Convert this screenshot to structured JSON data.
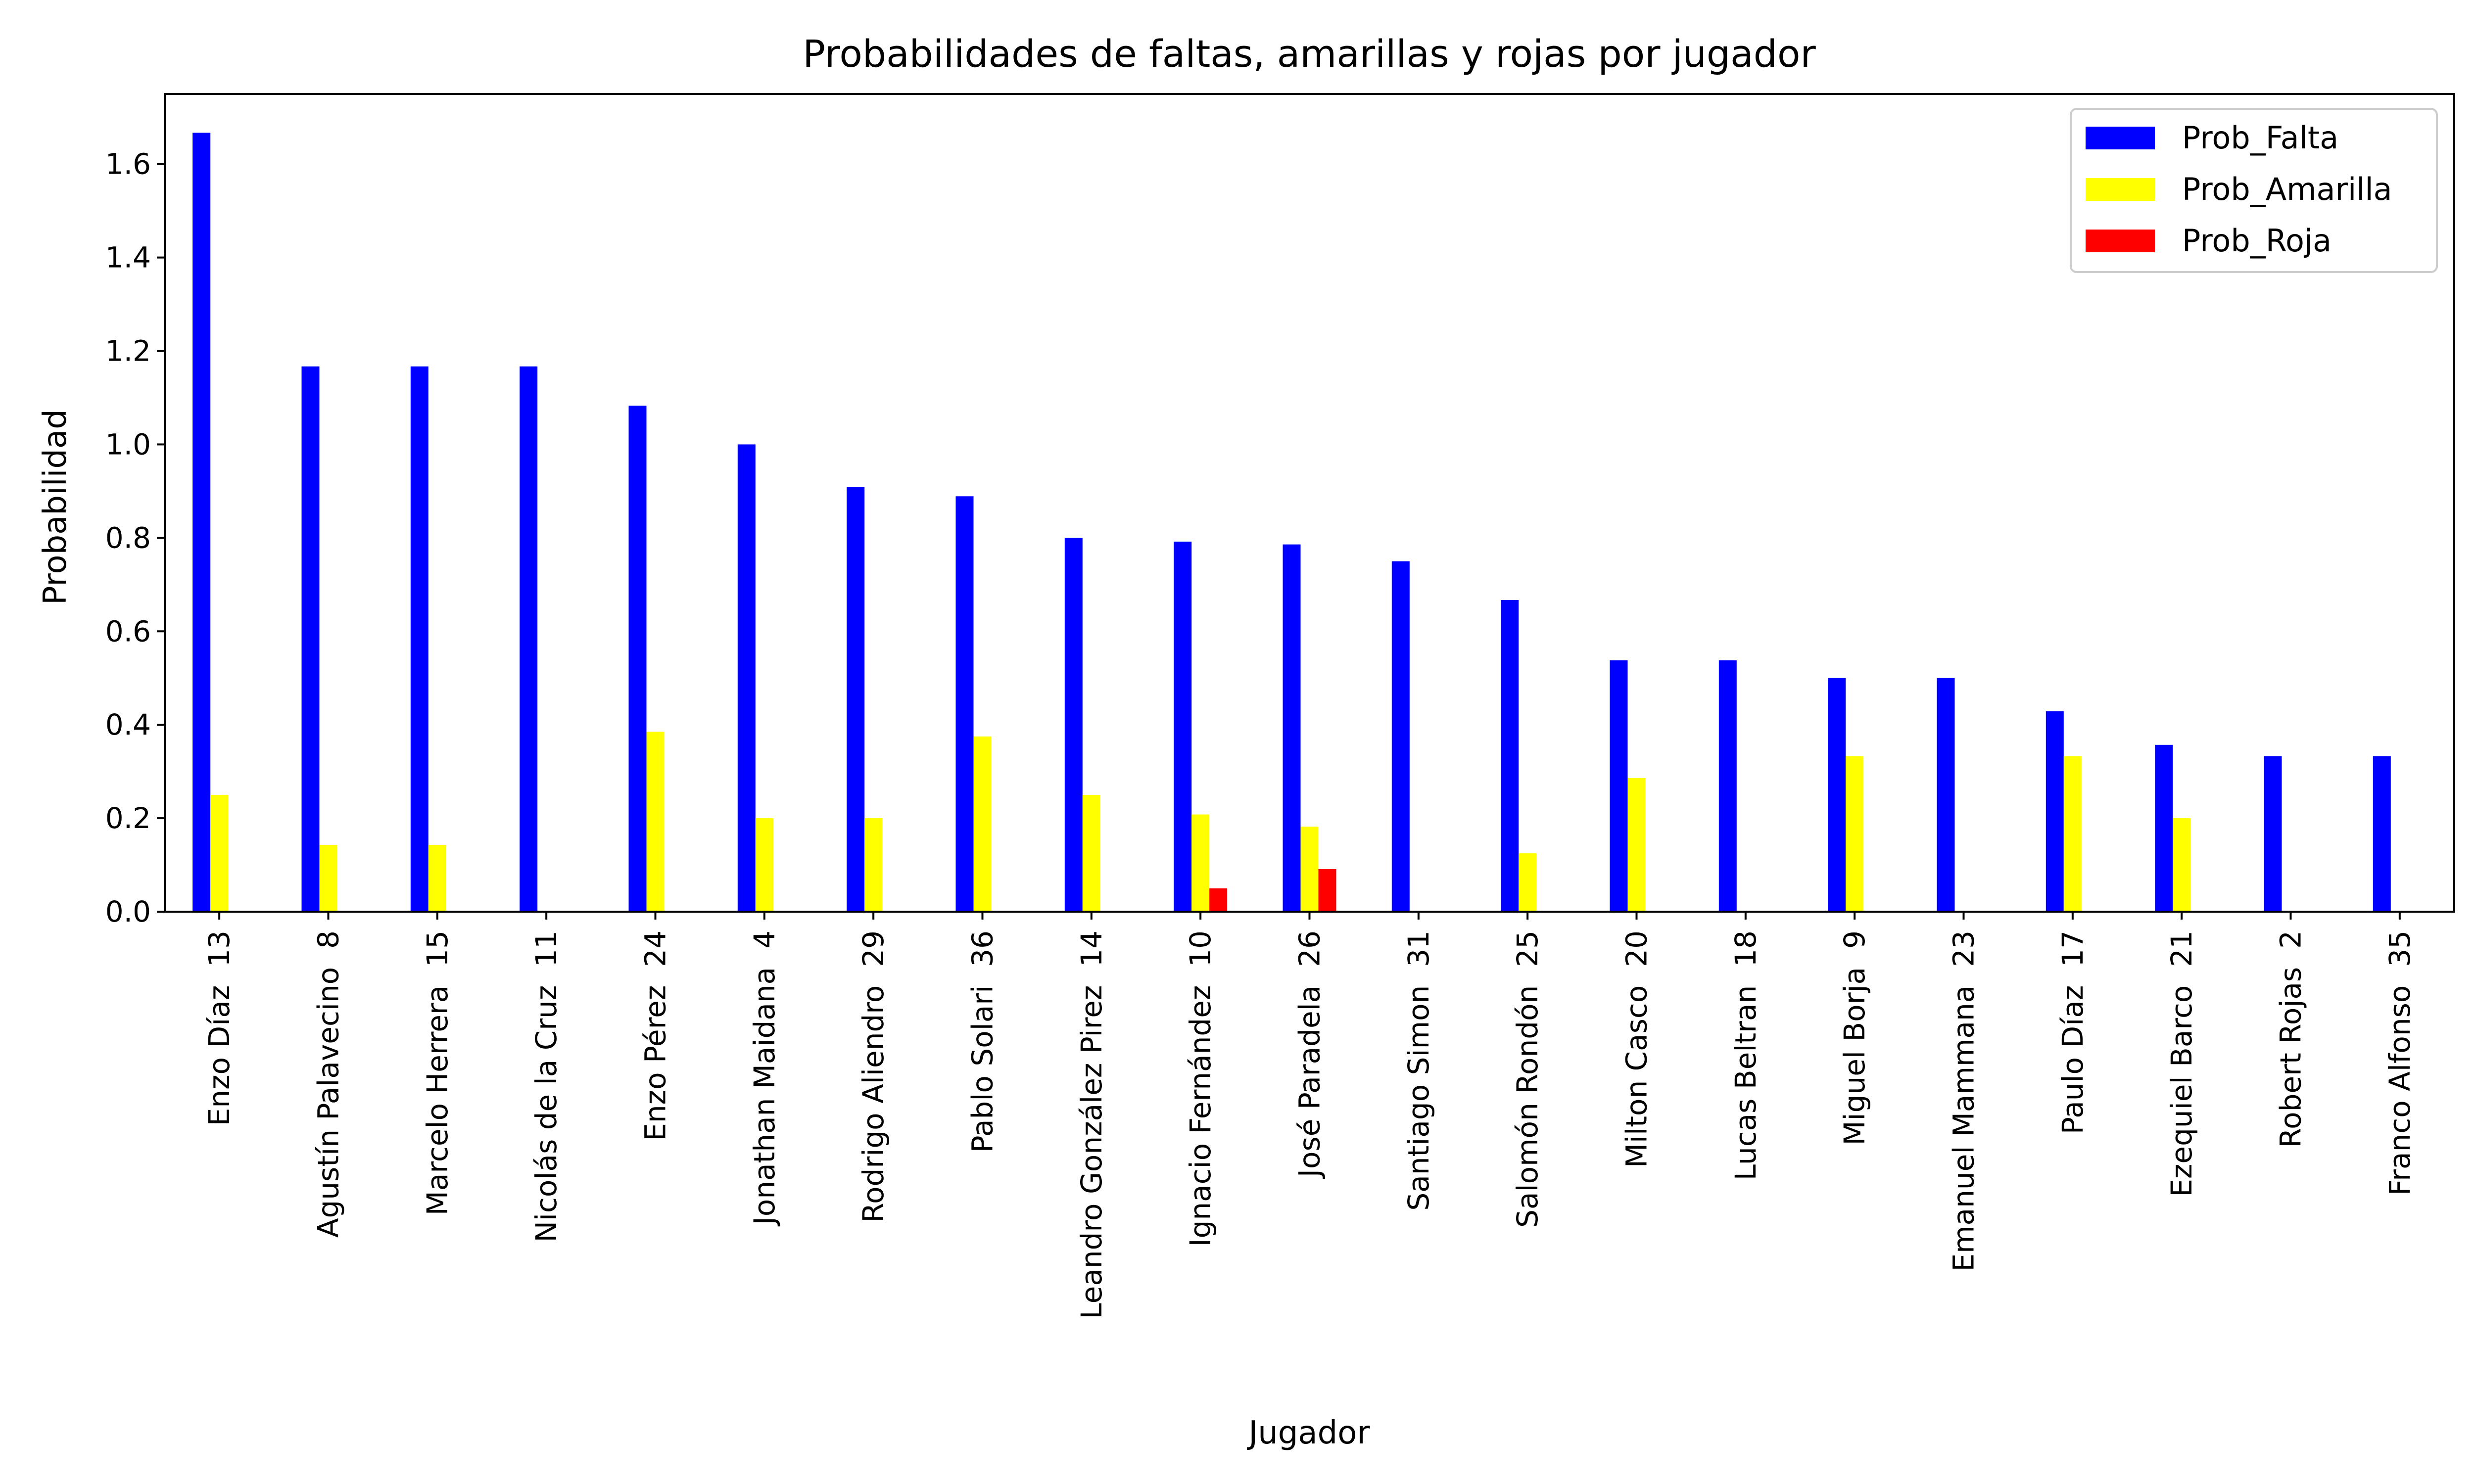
{
  "chart_data": {
    "type": "bar",
    "title": "Probabilidades de faltas, amarillas y rojas por jugador",
    "xlabel": "Jugador",
    "ylabel": "Probabilidad",
    "ylim": [
      0,
      1.75
    ],
    "yticks": [
      "0.0",
      "0.2",
      "0.4",
      "0.6",
      "0.8",
      "1.0",
      "1.2",
      "1.4",
      "1.6"
    ],
    "grid": false,
    "legend_position": "top-right",
    "categories": [
      "Enzo Díaz  13",
      "Agustín Palavecino  8",
      "Marcelo Herrera  15",
      "Nicolás de la Cruz  11",
      "Enzo Pérez  24",
      "Jonathan Maidana  4",
      "Rodrigo Aliendro  29",
      "Pablo Solari  36",
      "Leandro González Pirez  14",
      "Ignacio Fernández  10",
      "José Paradela  26",
      "Santiago Simon  31",
      "Salomón Rondón  25",
      "Milton Casco  20",
      "Lucas Beltran  18",
      "Miguel Borja  9",
      "Emanuel Mammana  23",
      "Paulo Díaz  17",
      "Ezequiel Barco  21",
      "Robert Rojas  2",
      "Franco Alfonso  35"
    ],
    "series": [
      {
        "name": "Prob_Falta",
        "color": "#0000ff",
        "values": [
          1.667,
          1.167,
          1.167,
          1.167,
          1.083,
          1.0,
          0.909,
          0.889,
          0.8,
          0.792,
          0.786,
          0.75,
          0.667,
          0.538,
          0.538,
          0.5,
          0.5,
          0.429,
          0.357,
          0.333,
          0.333
        ]
      },
      {
        "name": "Prob_Amarilla",
        "color": "#ffff00",
        "values": [
          0.25,
          0.143,
          0.143,
          0.0,
          0.385,
          0.2,
          0.2,
          0.375,
          0.25,
          0.208,
          0.182,
          0.0,
          0.125,
          0.286,
          0.0,
          0.333,
          0.0,
          0.333,
          0.2,
          0.0,
          0.0
        ]
      },
      {
        "name": "Prob_Roja",
        "color": "#ff0000",
        "values": [
          0,
          0,
          0,
          0,
          0,
          0,
          0,
          0,
          0,
          0.05,
          0.091,
          0,
          0,
          0,
          0,
          0,
          0,
          0,
          0,
          0,
          0
        ]
      }
    ]
  }
}
